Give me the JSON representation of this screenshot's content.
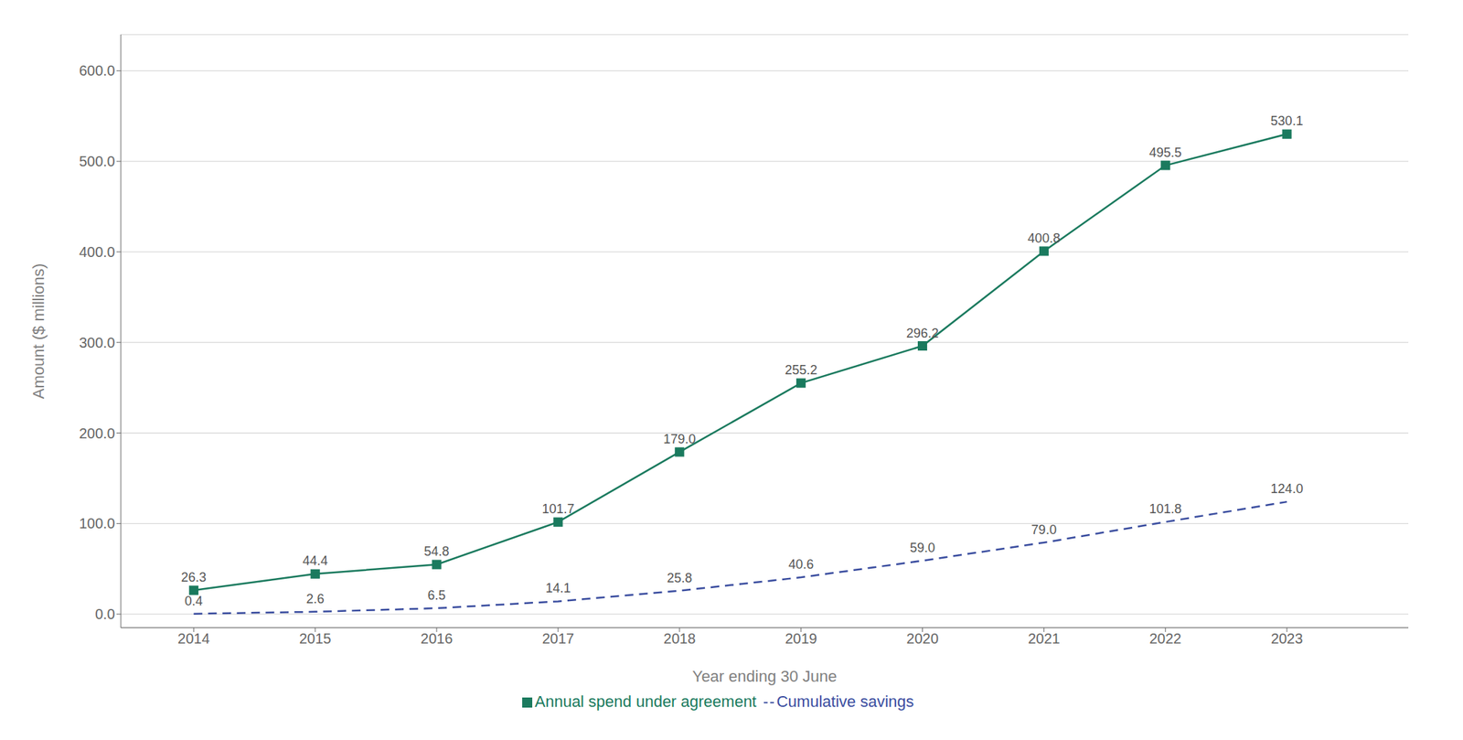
{
  "chart_data": {
    "type": "line",
    "x_label": "Year ending 30 June",
    "y_label": "Amount ($ millions)",
    "x": [
      2014,
      2015,
      2016,
      2017,
      2018,
      2019,
      2020,
      2021,
      2022,
      2023
    ],
    "series": [
      {
        "name": "Annual spend under agreement",
        "color": "#1a7a5e",
        "marker": "square",
        "line_style": "solid",
        "values": [
          26.3,
          44.4,
          54.8,
          101.7,
          179.0,
          255.2,
          296.2,
          400.8,
          495.5,
          530.1
        ],
        "value_labels": [
          "26.3",
          "44.4",
          "54.8",
          "101.7",
          "179.0",
          "255.2",
          "296.2",
          "400.8",
          "495.5",
          "530.1"
        ]
      },
      {
        "name": "Cumulative savings",
        "color": "#3a4d9f",
        "marker": "none",
        "line_style": "dashed",
        "values": [
          0.4,
          2.6,
          6.5,
          14.1,
          25.8,
          40.6,
          59.0,
          79.0,
          101.8,
          124.0
        ],
        "value_labels": [
          "0.4",
          "2.6",
          "6.5",
          "14.1",
          "25.8",
          "40.6",
          "59.0",
          "79.0",
          "101.8",
          "124.0"
        ]
      }
    ],
    "xlim": [
      2013.4,
      2024.0
    ],
    "xticks": [
      2014,
      2015,
      2016,
      2017,
      2018,
      2019,
      2020,
      2021,
      2022,
      2023
    ],
    "ylim": [
      -15,
      640
    ],
    "yticks": [
      {
        "value": 0,
        "label": "0.0"
      },
      {
        "value": 100,
        "label": "100.0"
      },
      {
        "value": 200,
        "label": "200.0"
      },
      {
        "value": 300,
        "label": "300.0"
      },
      {
        "value": 400,
        "label": "400.0"
      },
      {
        "value": 500,
        "label": "500.0"
      },
      {
        "value": 600,
        "label": "600.0"
      }
    ],
    "grid": true,
    "legend": "bottom",
    "data_labels": true
  }
}
